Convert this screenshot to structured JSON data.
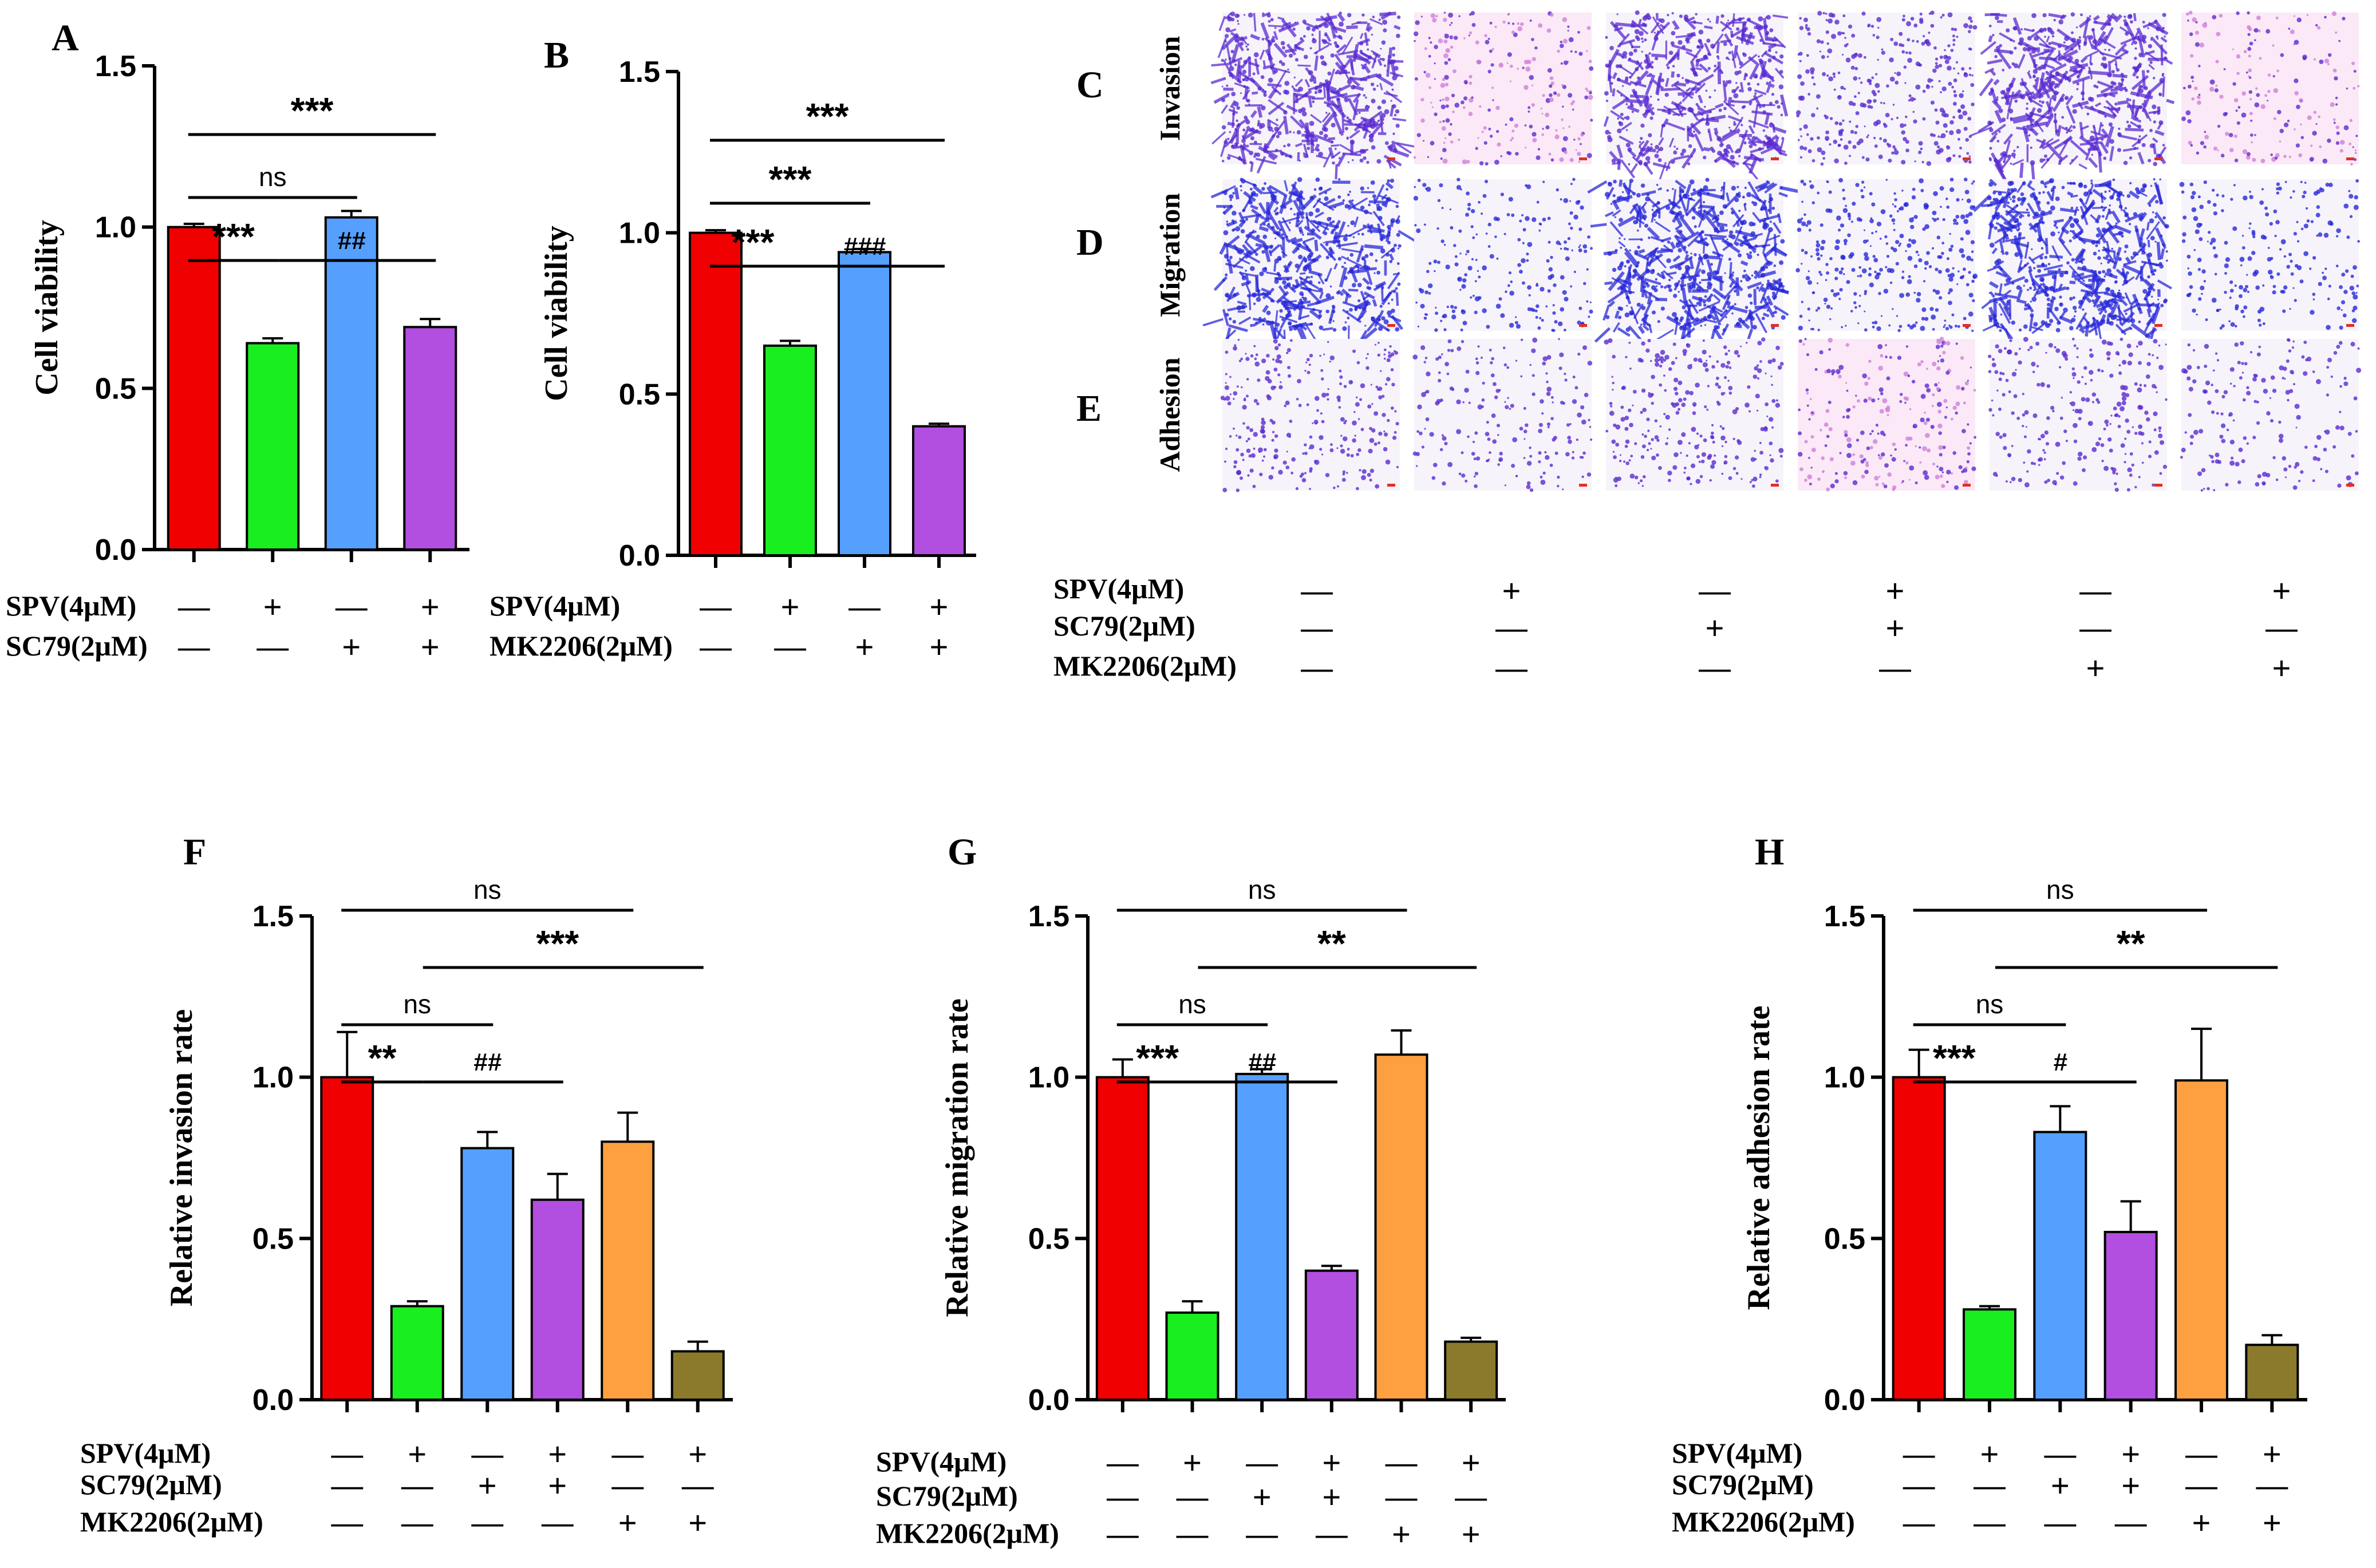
{
  "colors": {
    "red": "#f00000",
    "green": "#19ee1e",
    "blue": "#55a0ff",
    "purple": "#b24ee0",
    "orange": "#ffa040",
    "olive": "#8b7a2c",
    "stain_violet": "#5a2bd0",
    "stain_blue": "#2828d8",
    "stain_pink": "#d080d8"
  },
  "condition_labels": {
    "spv": "SPV(4μM)",
    "sc79": "SC79(2μM)",
    "mk2206": "MK2206(2μM)"
  },
  "signs": {
    "plus": "+",
    "minus": "—"
  },
  "panelA": {
    "letter": "A",
    "rows": [
      {
        "label": "SPV(4μM)",
        "signs": [
          "—",
          "+",
          "—",
          "+"
        ]
      },
      {
        "label": "SC79(2μM)",
        "signs": [
          "—",
          "—",
          "+",
          "+"
        ]
      }
    ],
    "annotations": [
      {
        "text": "***",
        "from": 0,
        "to": 3,
        "level": 1
      },
      {
        "text": "ns",
        "from": 0,
        "to": 2,
        "level": 2
      },
      {
        "text": "***",
        "from": 0,
        "to": 1,
        "level": 3
      },
      {
        "text": "##",
        "from": 1,
        "to": 3,
        "level": 3
      }
    ]
  },
  "panelB": {
    "letter": "B",
    "rows": [
      {
        "label": "SPV(4μM)",
        "signs": [
          "—",
          "+",
          "—",
          "+"
        ]
      },
      {
        "label": "MK2206(2μM)",
        "signs": [
          "—",
          "—",
          "+",
          "+"
        ]
      }
    ],
    "annotations": [
      {
        "text": "***",
        "from": 0,
        "to": 3,
        "level": 1
      },
      {
        "text": "***",
        "from": 0,
        "to": 2,
        "level": 2
      },
      {
        "text": "***",
        "from": 0,
        "to": 1,
        "level": 3
      },
      {
        "text": "###",
        "from": 1,
        "to": 3,
        "level": 3
      }
    ]
  },
  "images": {
    "rows": [
      {
        "letter": "C",
        "label": "Invasion",
        "stain": "stain_violet",
        "density": [
          0.95,
          0.35,
          0.9,
          0.55,
          0.9,
          0.25
        ],
        "pinkish": [
          false,
          true,
          false,
          false,
          false,
          true
        ]
      },
      {
        "letter": "D",
        "label": "Migration",
        "stain": "stain_blue",
        "density": [
          0.95,
          0.3,
          1.0,
          0.5,
          1.0,
          0.3
        ],
        "pinkish": [
          false,
          false,
          false,
          false,
          false,
          false
        ]
      },
      {
        "letter": "E",
        "label": "Adhesion",
        "stain": "stain_violet",
        "density": [
          0.4,
          0.25,
          0.4,
          0.35,
          0.35,
          0.22
        ],
        "pinkish": [
          false,
          false,
          false,
          true,
          false,
          false
        ]
      }
    ],
    "conditions": [
      {
        "label": "SPV(4μM)",
        "signs": [
          "—",
          "+",
          "—",
          "+",
          "—",
          "+"
        ]
      },
      {
        "label": "SC79(2μM)",
        "signs": [
          "—",
          "—",
          "+",
          "+",
          "—",
          "—"
        ]
      },
      {
        "label": "MK2206(2μM)",
        "signs": [
          "—",
          "—",
          "—",
          "—",
          "+",
          "+"
        ]
      }
    ]
  },
  "panelF": {
    "letter": "F",
    "rows": [
      {
        "label": "SPV(4μM)",
        "signs": [
          "—",
          "+",
          "—",
          "+",
          "—",
          "+"
        ]
      },
      {
        "label": "SC79(2μM)",
        "signs": [
          "—",
          "—",
          "+",
          "+",
          "—",
          "—"
        ]
      },
      {
        "label": "MK2206(2μM)",
        "signs": [
          "—",
          "—",
          "—",
          "—",
          "+",
          "+"
        ]
      }
    ],
    "annotations": [
      {
        "text": "ns",
        "from": 0,
        "to": 4,
        "level": 1
      },
      {
        "text": "***",
        "from": 1,
        "to": 5,
        "level": 2
      },
      {
        "text": "ns",
        "from": 0,
        "to": 2,
        "level": 3
      },
      {
        "text": "**",
        "from": 0,
        "to": 1,
        "level": 4
      },
      {
        "text": "##",
        "from": 1,
        "to": 3,
        "level": 4
      }
    ]
  },
  "panelG": {
    "letter": "G",
    "rows": [
      {
        "label": "SPV(4μM)",
        "signs": [
          "—",
          "+",
          "—",
          "+",
          "—",
          "+"
        ]
      },
      {
        "label": "SC79(2μM)",
        "signs": [
          "—",
          "—",
          "+",
          "+",
          "—",
          "—"
        ]
      },
      {
        "label": "MK2206(2μM)",
        "signs": [
          "—",
          "—",
          "—",
          "—",
          "+",
          "+"
        ]
      }
    ],
    "annotations": [
      {
        "text": "ns",
        "from": 0,
        "to": 4,
        "level": 1
      },
      {
        "text": "**",
        "from": 1,
        "to": 5,
        "level": 2
      },
      {
        "text": "ns",
        "from": 0,
        "to": 2,
        "level": 3
      },
      {
        "text": "***",
        "from": 0,
        "to": 1,
        "level": 4
      },
      {
        "text": "##",
        "from": 1,
        "to": 3,
        "level": 4
      }
    ]
  },
  "panelH": {
    "letter": "H",
    "rows": [
      {
        "label": "SPV(4μM)",
        "signs": [
          "—",
          "+",
          "—",
          "+",
          "—",
          "+"
        ]
      },
      {
        "label": "SC79(2μM)",
        "signs": [
          "—",
          "—",
          "+",
          "+",
          "—",
          "—"
        ]
      },
      {
        "label": "MK2206(2μM)",
        "signs": [
          "—",
          "—",
          "—",
          "—",
          "+",
          "+"
        ]
      }
    ],
    "annotations": [
      {
        "text": "ns",
        "from": 0,
        "to": 4,
        "level": 1
      },
      {
        "text": "**",
        "from": 1,
        "to": 5,
        "level": 2
      },
      {
        "text": "ns",
        "from": 0,
        "to": 2,
        "level": 3
      },
      {
        "text": "***",
        "from": 0,
        "to": 1,
        "level": 4
      },
      {
        "text": "#",
        "from": 1,
        "to": 3,
        "level": 4
      }
    ]
  },
  "chart_data": [
    {
      "id": "A",
      "type": "bar",
      "title": "",
      "xlabel": "",
      "ylabel": "Cell viability",
      "ylim": [
        0,
        1.5
      ],
      "yticks": [
        "0.0",
        "0.5",
        "1.0",
        "1.5"
      ],
      "values": [
        1.0,
        0.64,
        1.03,
        0.69
      ],
      "errors": [
        0.01,
        0.015,
        0.02,
        0.025
      ],
      "bar_colors": [
        "red",
        "green",
        "blue",
        "purple"
      ]
    },
    {
      "id": "B",
      "type": "bar",
      "title": "",
      "xlabel": "",
      "ylabel": "Cell viability",
      "ylim": [
        0,
        1.5
      ],
      "yticks": [
        "0.0",
        "0.5",
        "1.0",
        "1.5"
      ],
      "values": [
        1.0,
        0.65,
        0.94,
        0.4
      ],
      "errors": [
        0.008,
        0.015,
        0.01,
        0.008
      ],
      "bar_colors": [
        "red",
        "green",
        "blue",
        "purple"
      ]
    },
    {
      "id": "F",
      "type": "bar",
      "title": "",
      "xlabel": "",
      "ylabel": "Relative invasion  rate",
      "ylim": [
        0,
        1.5
      ],
      "yticks": [
        "0.0",
        "0.5",
        "1.0",
        "1.5"
      ],
      "values": [
        1.0,
        0.29,
        0.78,
        0.62,
        0.8,
        0.15
      ],
      "errors": [
        0.14,
        0.015,
        0.05,
        0.08,
        0.09,
        0.03
      ],
      "bar_colors": [
        "red",
        "green",
        "blue",
        "purple",
        "orange",
        "olive"
      ]
    },
    {
      "id": "G",
      "type": "bar",
      "title": "",
      "xlabel": "",
      "ylabel": "Relative migration rate",
      "ylim": [
        0,
        1.5
      ],
      "yticks": [
        "0.0",
        "0.5",
        "1.0",
        "1.5"
      ],
      "values": [
        1.0,
        0.27,
        1.01,
        0.4,
        1.07,
        0.18
      ],
      "errors": [
        0.055,
        0.035,
        0.015,
        0.015,
        0.075,
        0.012
      ],
      "bar_colors": [
        "red",
        "green",
        "blue",
        "purple",
        "orange",
        "olive"
      ]
    },
    {
      "id": "H",
      "type": "bar",
      "title": "",
      "xlabel": "",
      "ylabel": "Relative adhesion  rate",
      "ylim": [
        0,
        1.5
      ],
      "yticks": [
        "0.0",
        "0.5",
        "1.0",
        "1.5"
      ],
      "values": [
        1.0,
        0.28,
        0.83,
        0.52,
        0.99,
        0.17
      ],
      "errors": [
        0.085,
        0.01,
        0.08,
        0.095,
        0.16,
        0.03
      ],
      "bar_colors": [
        "red",
        "green",
        "blue",
        "purple",
        "orange",
        "olive"
      ]
    }
  ]
}
